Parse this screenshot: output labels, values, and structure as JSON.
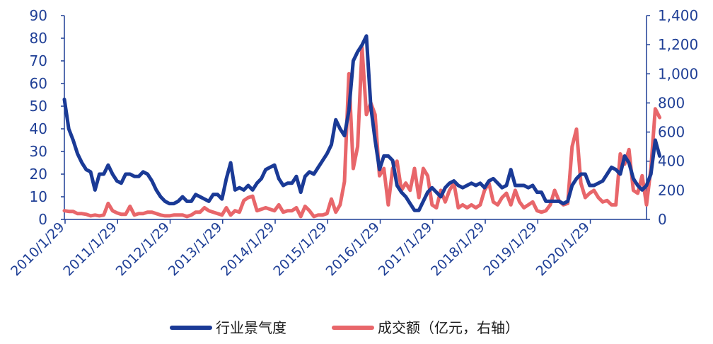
{
  "chart_data": {
    "type": "line",
    "title": "",
    "left_axis": {
      "min": 0,
      "max": 90,
      "ticks": [
        "0",
        "10",
        "20",
        "30",
        "40",
        "50",
        "60",
        "70",
        "80",
        "90"
      ]
    },
    "right_axis": {
      "min": 0,
      "max": 1400,
      "ticks": [
        "0",
        "200",
        "400",
        "600",
        "800",
        "1,000",
        "1,200",
        "1,400"
      ]
    },
    "x_tick_labels": [
      "2010/1/29",
      "2011/1/29",
      "2012/1/29",
      "2013/1/29",
      "2014/1/29",
      "2015/1/29",
      "2016/1/29",
      "2017/1/29",
      "2018/1/29",
      "2019/1/29",
      "2020/1/29"
    ],
    "series": [
      {
        "name": "行业景气度",
        "axis": "left",
        "color": "#1a3a96",
        "x_month_start": "2010-01",
        "values": [
          53,
          40,
          35,
          29,
          25,
          22,
          21,
          13,
          20,
          20,
          24,
          20,
          17,
          16,
          20,
          20,
          19,
          19,
          21,
          20,
          17,
          13,
          10,
          8,
          7,
          7,
          8,
          10,
          8,
          8,
          11,
          10,
          9,
          8,
          11,
          11,
          9,
          18,
          25,
          13,
          14,
          13,
          15,
          13,
          16,
          18,
          22,
          23,
          24,
          18,
          15,
          16,
          16,
          19,
          12,
          19,
          21,
          20,
          23,
          26,
          29,
          33,
          44,
          40,
          37,
          48,
          70,
          74,
          77,
          81,
          50,
          35,
          22,
          28,
          28,
          26,
          15,
          12,
          10,
          7,
          4,
          4,
          8,
          12,
          14,
          12,
          10,
          14,
          16,
          17,
          15,
          14,
          15,
          16,
          15,
          16,
          14,
          17,
          18,
          16,
          14,
          15,
          22,
          15,
          15,
          15,
          14,
          15,
          12,
          12,
          8,
          8,
          8,
          8,
          7,
          8,
          15,
          18,
          20,
          20,
          15,
          15,
          16,
          17,
          20,
          23,
          22,
          20,
          28,
          25,
          18,
          15,
          13,
          15,
          20,
          35,
          28
        ]
      },
      {
        "name": "成交额（亿元，右轴）",
        "axis": "right",
        "color": "#e8666a",
        "x_month_start": "2010-01",
        "values": [
          60,
          55,
          55,
          40,
          40,
          35,
          25,
          30,
          25,
          30,
          110,
          60,
          45,
          35,
          35,
          90,
          30,
          40,
          40,
          50,
          50,
          40,
          30,
          25,
          25,
          30,
          30,
          30,
          20,
          30,
          50,
          50,
          80,
          60,
          50,
          40,
          30,
          80,
          30,
          60,
          50,
          130,
          150,
          160,
          60,
          70,
          80,
          70,
          60,
          100,
          50,
          60,
          60,
          80,
          20,
          90,
          60,
          20,
          30,
          30,
          40,
          140,
          50,
          100,
          260,
          1000,
          350,
          500,
          1180,
          720,
          800,
          720,
          300,
          350,
          100,
          350,
          400,
          200,
          250,
          200,
          350,
          150,
          350,
          300,
          100,
          80,
          200,
          120,
          200,
          250,
          80,
          100,
          80,
          100,
          80,
          100,
          200,
          250,
          120,
          100,
          150,
          180,
          100,
          200,
          120,
          80,
          100,
          120,
          60,
          50,
          60,
          100,
          200,
          130,
          100,
          110,
          500,
          620,
          250,
          150,
          180,
          200,
          150,
          120,
          130,
          100,
          100,
          450,
          380,
          480,
          200,
          180,
          300,
          100,
          350,
          760,
          700
        ]
      }
    ]
  }
}
